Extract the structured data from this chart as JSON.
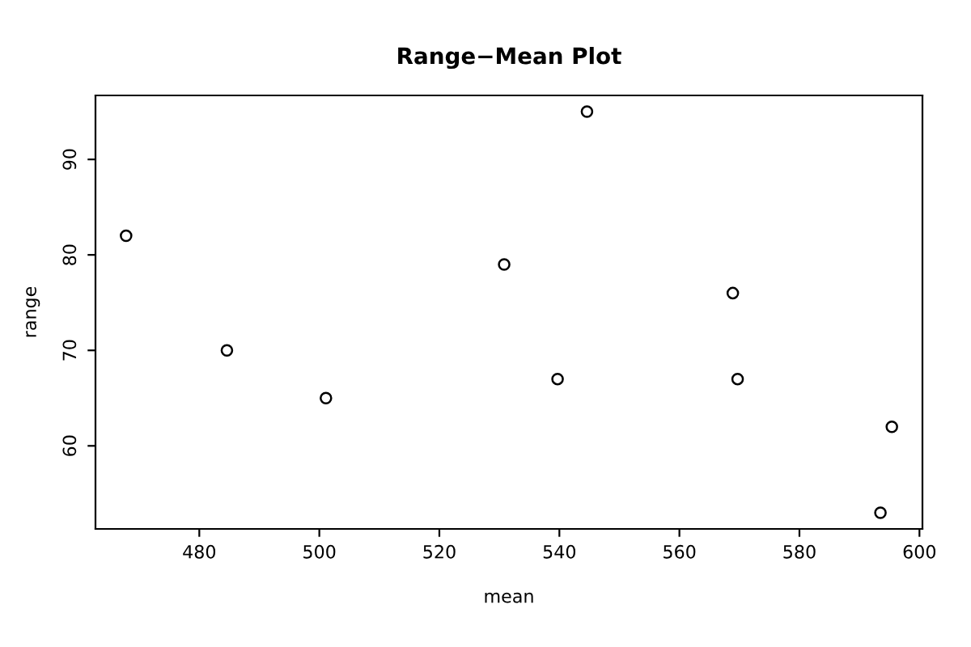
{
  "chart_data": {
    "type": "scatter",
    "title": "Range−Mean Plot",
    "xlabel": "mean",
    "ylabel": "range",
    "x": [
      467.8,
      484.6,
      501.1,
      530.8,
      539.7,
      544.6,
      568.9,
      569.7,
      593.5,
      595.4
    ],
    "values": [
      82,
      70,
      65,
      79,
      67,
      95,
      76,
      67,
      53,
      62
    ],
    "color": "#000000",
    "marker": "circle",
    "grid": false,
    "legend": false,
    "xlim": [
      462.7,
      600.5
    ],
    "ylim": [
      51.3,
      96.7
    ],
    "xticks": [
      480,
      500,
      520,
      540,
      560,
      580,
      600
    ],
    "yticks": [
      60,
      70,
      80,
      90
    ]
  }
}
